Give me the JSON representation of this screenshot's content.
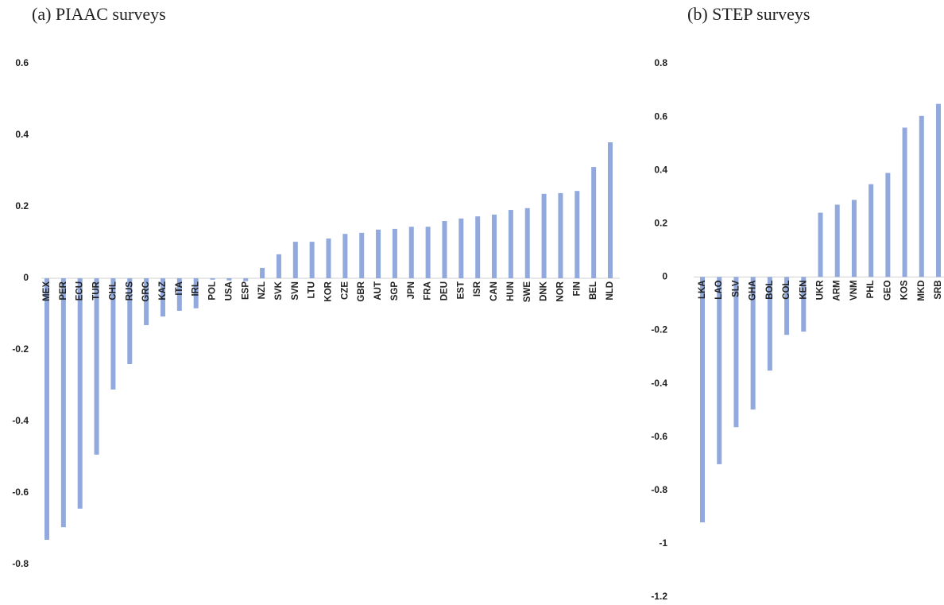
{
  "chart_data": [
    {
      "type": "bar",
      "title": "(a)   PIAAC surveys",
      "color": "#91a9dd",
      "categories": [
        "MEX",
        "PER",
        "ECU",
        "TUR",
        "CHL",
        "RUS",
        "GRC",
        "KAZ",
        "ITA",
        "IRL",
        "POL",
        "USA",
        "ESP",
        "NZL",
        "SVK",
        "SVN",
        "LTU",
        "KOR",
        "CZE",
        "GBR",
        "AUT",
        "SGP",
        "JPN",
        "FRA",
        "DEU",
        "EST",
        "ISR",
        "CAN",
        "HUN",
        "SWE",
        "DNK",
        "NOR",
        "FIN",
        "BEL",
        "NLD"
      ],
      "values": [
        -0.731,
        -0.696,
        -0.644,
        -0.493,
        -0.311,
        -0.24,
        -0.131,
        -0.107,
        -0.091,
        -0.084,
        -0.004,
        -0.006,
        -0.008,
        0.029,
        0.067,
        0.102,
        0.102,
        0.111,
        0.124,
        0.127,
        0.136,
        0.138,
        0.144,
        0.144,
        0.16,
        0.167,
        0.173,
        0.178,
        0.191,
        0.196,
        0.236,
        0.238,
        0.244,
        0.311,
        0.38
      ],
      "ylim": [
        -0.8,
        0.6
      ],
      "yticks": [
        -0.8,
        -0.6,
        -0.4,
        -0.2,
        0,
        0.2,
        0.4,
        0.6
      ]
    },
    {
      "type": "bar",
      "title": "(b)   STEP surveys",
      "color": "#91a9dd",
      "categories": [
        "LKA",
        "LAO",
        "SLV",
        "GHA",
        "BOL",
        "COL",
        "KEN",
        "UKR",
        "ARM",
        "VNM",
        "PHL",
        "GEO",
        "KOS",
        "MKD",
        "SRB"
      ],
      "values": [
        -0.92,
        -0.702,
        -0.563,
        -0.497,
        -0.351,
        -0.217,
        -0.205,
        0.241,
        0.271,
        0.289,
        0.348,
        0.39,
        0.56,
        0.604,
        0.649
      ],
      "ylim": [
        -1.2,
        0.8
      ],
      "yticks": [
        -1.2,
        -1,
        -0.8,
        -0.6,
        -0.4,
        -0.2,
        0,
        0.2,
        0.4,
        0.6,
        0.8
      ]
    }
  ]
}
